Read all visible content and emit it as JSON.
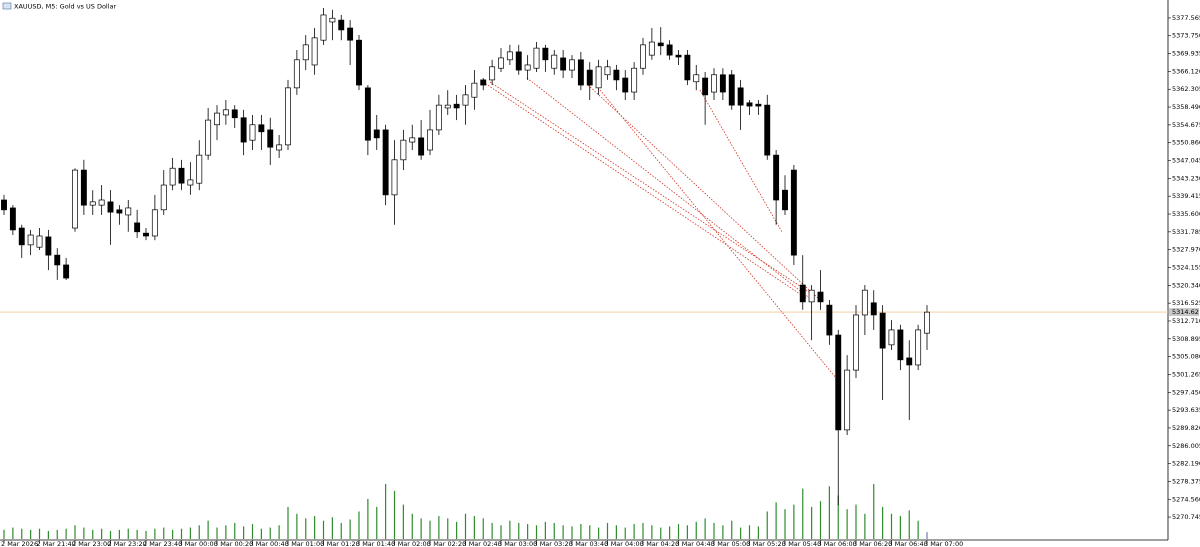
{
  "chart_data": {
    "type": "candlestick",
    "title": "XAUUSD, M5: Gold vs US Dollar",
    "up_color": "#ffffff",
    "down_color": "#000000",
    "volume_color": "#2e8b2e",
    "ylim": [
      5265.84,
      5381.4
    ],
    "yticks": [
      5377.565,
      {
        "value": 5373.75,
        "label": "5373.750"
      },
      5369.935,
      {
        "value": 5366.12,
        "label": "5366.120"
      },
      5362.305,
      {
        "value": 5358.49,
        "label": "5358.490"
      },
      5354.675,
      {
        "value": 5350.86,
        "label": "5350.860"
      },
      5347.045,
      {
        "value": 5343.23,
        "label": "5343.230"
      },
      5339.415,
      {
        "value": 5335.6,
        "label": "5335.600"
      },
      5331.785,
      {
        "value": 5327.97,
        "label": "5327.970"
      },
      5324.155,
      {
        "value": 5320.34,
        "label": "5320.340"
      },
      5316.525,
      {
        "value": 5312.71,
        "label": "5312.710"
      },
      5308.895,
      {
        "value": 5305.08,
        "label": "5305.080"
      },
      5301.265,
      {
        "value": 5297.45,
        "label": "5297.450"
      },
      5293.635,
      {
        "value": 5289.82,
        "label": "5289.820"
      },
      5286.005,
      {
        "value": 5282.19,
        "label": "5282.190"
      },
      5278.375,
      {
        "value": 5274.56,
        "label": "5274.560"
      },
      5270.745
    ],
    "current_price": 5314.62,
    "x_labels": [
      "2 Mar 2026",
      "2 Mar 21:40",
      "2 Mar 23:00",
      "2 Mar 23:20",
      "2 Mar 23:40",
      "3 Mar 00:00",
      "3 Mar 00:20",
      "3 Mar 00:40",
      "3 Mar 01:00",
      "3 Mar 01:20",
      "3 Mar 01:40",
      "3 Mar 02:00",
      "3 Mar 02:20",
      "3 Mar 02:40",
      "3 Mar 03:00",
      "3 Mar 03:20",
      "3 Mar 03:40",
      "3 Mar 04:00",
      "3 Mar 04:20",
      "3 Mar 04:40",
      "3 Mar 05:00",
      "3 Mar 05:20",
      "3 Mar 05:40",
      "3 Mar 06:00",
      "3 Mar 06:20",
      "3 Mar 06:40",
      "3 Mar 07:00"
    ],
    "ohlc": [
      [
        5338.6,
        5339.7,
        5335.4,
        5336.5
      ],
      [
        5336.9,
        5337.5,
        5331.1,
        5332.2
      ],
      [
        5332.6,
        5333.3,
        5326.2,
        5329.0
      ],
      [
        5329.0,
        5332.2,
        5326.8,
        5331.1
      ],
      [
        5328.5,
        5332.6,
        5327.9,
        5330.9
      ],
      [
        5330.7,
        5332.2,
        5323.6,
        5326.8
      ],
      [
        5326.8,
        5328.3,
        5321.5,
        5324.7
      ],
      [
        5324.7,
        5326.2,
        5321.5,
        5321.9
      ],
      [
        5332.6,
        5345.4,
        5331.8,
        5345.0
      ],
      [
        5345.0,
        5347.2,
        5335.4,
        5337.5
      ],
      [
        5337.5,
        5340.7,
        5335.4,
        5338.2
      ],
      [
        5337.5,
        5341.8,
        5335.4,
        5338.6
      ],
      [
        5338.2,
        5340.7,
        5329.0,
        5336.0
      ],
      [
        5336.5,
        5337.5,
        5333.3,
        5335.8
      ],
      [
        5335.4,
        5338.6,
        5331.8,
        5336.9
      ],
      [
        5333.7,
        5336.5,
        5330.5,
        5331.8
      ],
      [
        5331.5,
        5332.6,
        5330.0,
        5330.9
      ],
      [
        5330.9,
        5339.7,
        5330.0,
        5336.5
      ],
      [
        5336.5,
        5345.0,
        5335.4,
        5341.8
      ],
      [
        5341.8,
        5347.6,
        5340.7,
        5345.4
      ],
      [
        5345.4,
        5347.2,
        5340.7,
        5342.2
      ],
      [
        5341.8,
        5346.7,
        5339.7,
        5342.9
      ],
      [
        5342.2,
        5351.4,
        5340.7,
        5348.2
      ],
      [
        5348.2,
        5358.3,
        5347.2,
        5355.7
      ],
      [
        5354.7,
        5358.9,
        5351.4,
        5357.2
      ],
      [
        5356.8,
        5360.0,
        5354.7,
        5357.9
      ],
      [
        5357.9,
        5358.9,
        5354.0,
        5356.2
      ],
      [
        5356.2,
        5357.9,
        5348.2,
        5351.0
      ],
      [
        5351.4,
        5356.8,
        5349.3,
        5354.7
      ],
      [
        5354.7,
        5356.8,
        5349.3,
        5353.2
      ],
      [
        5353.6,
        5356.2,
        5346.1,
        5349.9
      ],
      [
        5349.3,
        5352.5,
        5347.6,
        5350.4
      ],
      [
        5350.4,
        5364.3,
        5349.3,
        5362.6
      ],
      [
        5362.6,
        5370.7,
        5361.1,
        5368.6
      ],
      [
        5368.6,
        5373.9,
        5366.4,
        5371.8
      ],
      [
        5367.5,
        5375.4,
        5365.4,
        5373.3
      ],
      [
        5372.8,
        5379.7,
        5371.8,
        5378.2
      ],
      [
        5376.7,
        5379.3,
        5372.8,
        5377.5
      ],
      [
        5377.1,
        5378.2,
        5372.8,
        5375.0
      ],
      [
        5375.4,
        5377.1,
        5367.5,
        5372.8
      ],
      [
        5372.8,
        5373.9,
        5362.1,
        5363.2
      ],
      [
        5362.6,
        5363.2,
        5348.2,
        5351.4
      ],
      [
        5353.6,
        5356.8,
        5349.3,
        5351.9
      ],
      [
        5353.6,
        5354.7,
        5337.5,
        5339.7
      ],
      [
        5339.7,
        5351.4,
        5333.3,
        5347.2
      ],
      [
        5347.2,
        5353.6,
        5345.0,
        5351.4
      ],
      [
        5351.0,
        5354.7,
        5349.3,
        5351.9
      ],
      [
        5351.9,
        5355.7,
        5347.2,
        5348.2
      ],
      [
        5349.3,
        5357.9,
        5348.2,
        5353.6
      ],
      [
        5353.6,
        5361.1,
        5352.5,
        5358.9
      ],
      [
        5358.3,
        5362.1,
        5356.8,
        5358.9
      ],
      [
        5359.1,
        5361.1,
        5355.7,
        5358.3
      ],
      [
        5358.9,
        5363.2,
        5354.7,
        5361.1
      ],
      [
        5360.6,
        5366.4,
        5357.9,
        5363.6
      ],
      [
        5364.3,
        5364.7,
        5362.1,
        5363.2
      ],
      [
        5364.3,
        5368.6,
        5363.2,
        5367.1
      ],
      [
        5366.8,
        5371.1,
        5366.0,
        5369.0
      ],
      [
        5368.6,
        5371.8,
        5367.5,
        5370.3
      ],
      [
        5370.3,
        5371.8,
        5365.4,
        5366.4
      ],
      [
        5366.4,
        5369.6,
        5364.3,
        5367.5
      ],
      [
        5366.8,
        5372.4,
        5366.0,
        5371.1
      ],
      [
        5371.1,
        5371.8,
        5366.0,
        5368.6
      ],
      [
        5366.8,
        5370.7,
        5365.4,
        5369.6
      ],
      [
        5369.0,
        5370.7,
        5364.7,
        5366.4
      ],
      [
        5366.4,
        5369.6,
        5364.7,
        5368.6
      ],
      [
        5368.6,
        5370.3,
        5362.1,
        5363.2
      ],
      [
        5366.4,
        5368.1,
        5360.0,
        5363.2
      ],
      [
        5362.6,
        5368.6,
        5361.1,
        5367.1
      ],
      [
        5365.4,
        5368.6,
        5364.3,
        5367.1
      ],
      [
        5366.4,
        5367.5,
        5362.1,
        5364.3
      ],
      [
        5364.7,
        5366.4,
        5360.0,
        5361.7
      ],
      [
        5361.7,
        5368.1,
        5360.0,
        5366.8
      ],
      [
        5366.8,
        5373.3,
        5365.4,
        5371.8
      ],
      [
        5369.6,
        5375.4,
        5368.6,
        5372.4
      ],
      [
        5372.2,
        5375.6,
        5369.6,
        5371.6
      ],
      [
        5371.8,
        5372.8,
        5368.6,
        5369.6
      ],
      [
        5369.6,
        5370.7,
        5367.5,
        5369.2
      ],
      [
        5369.6,
        5370.7,
        5363.2,
        5364.3
      ],
      [
        5363.9,
        5367.5,
        5362.1,
        5365.4
      ],
      [
        5364.7,
        5366.0,
        5354.7,
        5361.1
      ],
      [
        5361.7,
        5366.8,
        5360.0,
        5365.4
      ],
      [
        5365.4,
        5366.8,
        5360.0,
        5361.7
      ],
      [
        5365.4,
        5366.4,
        5357.9,
        5358.9
      ],
      [
        5362.6,
        5364.3,
        5353.6,
        5358.9
      ],
      [
        5359.4,
        5360.0,
        5356.8,
        5358.7
      ],
      [
        5359.1,
        5360.0,
        5356.8,
        5358.7
      ],
      [
        5358.9,
        5361.1,
        5347.2,
        5348.2
      ],
      [
        5348.2,
        5349.3,
        5333.3,
        5338.6
      ],
      [
        5340.7,
        5343.9,
        5335.4,
        5336.5
      ],
      [
        5345.0,
        5346.1,
        5324.7,
        5326.8
      ],
      [
        5320.4,
        5326.8,
        5315.1,
        5316.8
      ],
      [
        5316.8,
        5320.4,
        5308.6,
        5319.3
      ],
      [
        5318.9,
        5323.6,
        5315.1,
        5316.8
      ],
      [
        5316.1,
        5317.2,
        5307.6,
        5309.7
      ],
      [
        5309.7,
        5310.8,
        5273.3,
        5289.4
      ],
      [
        5289.4,
        5305.4,
        5288.3,
        5302.2
      ],
      [
        5302.2,
        5316.1,
        5300.5,
        5314.0
      ],
      [
        5314.0,
        5320.4,
        5309.7,
        5319.3
      ],
      [
        5316.6,
        5319.3,
        5310.8,
        5314.0
      ],
      [
        5314.4,
        5316.1,
        5295.8,
        5306.9
      ],
      [
        5307.6,
        5312.9,
        5306.5,
        5310.8
      ],
      [
        5310.8,
        5311.9,
        5302.2,
        5304.4
      ],
      [
        5304.8,
        5308.6,
        5291.5,
        5303.3
      ],
      [
        5303.3,
        5311.9,
        5302.2,
        5310.8
      ],
      [
        5310.1,
        5316.1,
        5306.5,
        5314.6
      ]
    ],
    "volumes": [
      8,
      10,
      9,
      8,
      9,
      7,
      8,
      9,
      12,
      10,
      8,
      9,
      7,
      8,
      9,
      8,
      7,
      9,
      10,
      8,
      9,
      10,
      12,
      16,
      10,
      12,
      14,
      11,
      13,
      9,
      10,
      12,
      28,
      22,
      18,
      20,
      16,
      19,
      14,
      17,
      24,
      35,
      28,
      48,
      42,
      30,
      22,
      18,
      16,
      20,
      18,
      15,
      22,
      20,
      18,
      14,
      12,
      16,
      14,
      13,
      12,
      15,
      14,
      12,
      11,
      13,
      12,
      10,
      14,
      12,
      10,
      13,
      14,
      12,
      10,
      11,
      13,
      12,
      15,
      18,
      14,
      12,
      16,
      10,
      12,
      11,
      24,
      32,
      26,
      30,
      44,
      28,
      33,
      46,
      38,
      26,
      30,
      22,
      48,
      28,
      22,
      20,
      25,
      16,
      6
    ]
  }
}
